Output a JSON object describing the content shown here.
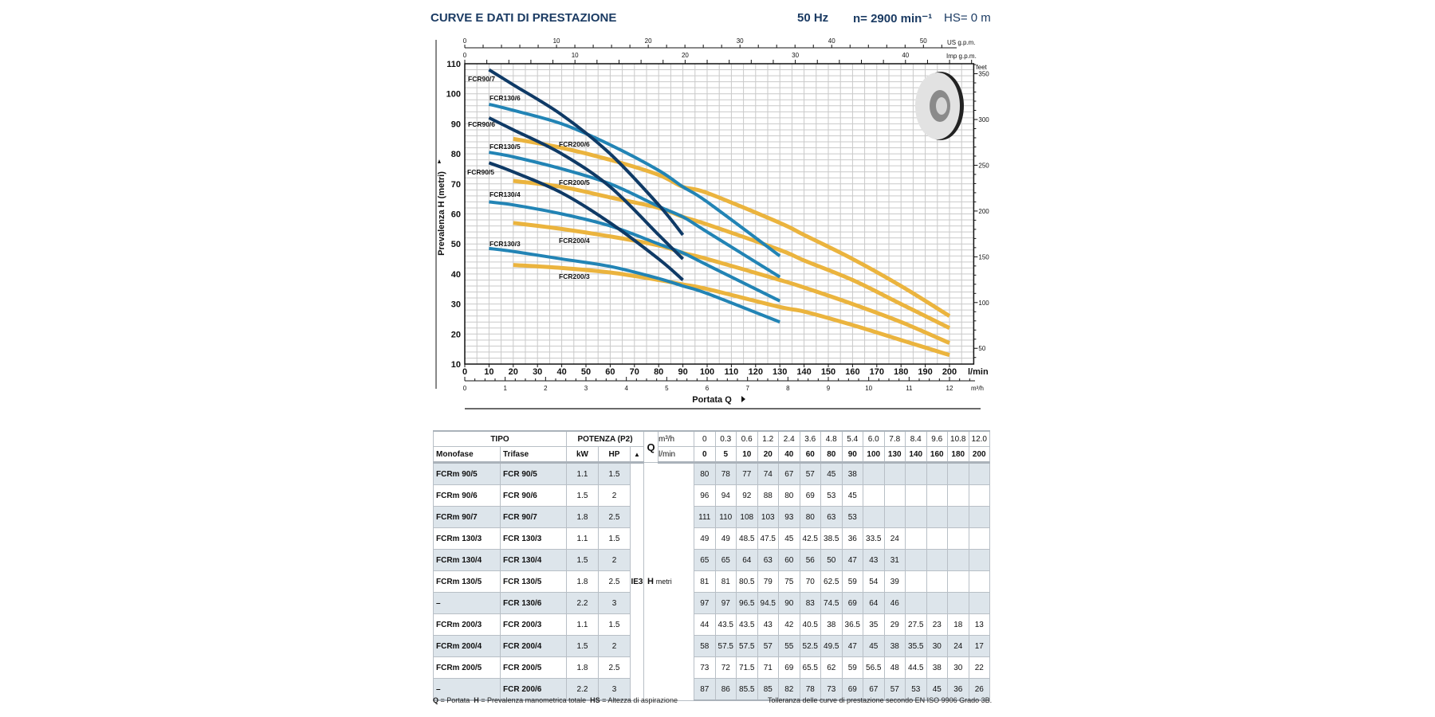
{
  "header": {
    "title": "CURVE E DATI DI PRESTAZIONE",
    "freq": "50 Hz",
    "speed": "n= 2900 min⁻¹",
    "hs": "HS= 0 m"
  },
  "colors": {
    "fcr90": "#0f3a66",
    "fcr130": "#2284b5",
    "fcr200": "#ebb43e",
    "title": "#1b3b63",
    "row_shade": "#dde5eb"
  },
  "chart_data": {
    "type": "line",
    "xlabel": "Portata Q",
    "ylabel": "Prevalenza H (metri)",
    "x_unit": "l/min",
    "xlim": [
      0,
      210
    ],
    "ylim": [
      10,
      110
    ],
    "grid": true,
    "x_ticks": [
      0,
      10,
      20,
      30,
      40,
      50,
      60,
      70,
      80,
      90,
      100,
      110,
      120,
      130,
      140,
      150,
      160,
      170,
      180,
      190,
      200
    ],
    "y_ticks": [
      10,
      20,
      30,
      40,
      50,
      60,
      70,
      80,
      90,
      100,
      110
    ],
    "secondary_axes": {
      "us_gpm": {
        "label": "US g.p.m.",
        "ticks": [
          0,
          10,
          20,
          30,
          40,
          50
        ]
      },
      "imp_gpm": {
        "label": "Imp g.p.m.",
        "ticks": [
          0,
          10,
          20,
          30,
          40
        ]
      },
      "m3h": {
        "label": "m³/h",
        "ticks": [
          0,
          1,
          2,
          3,
          4,
          5,
          6,
          7,
          8,
          9,
          10,
          11,
          12
        ]
      },
      "feet": {
        "label": "feet",
        "ticks": [
          50,
          100,
          150,
          200,
          250,
          300,
          350
        ]
      }
    },
    "series": [
      {
        "name": "FCR90/5",
        "group": "fcr90",
        "x": [
          10,
          20,
          40,
          60,
          80,
          90
        ],
        "y": [
          77,
          74,
          67,
          57,
          45,
          38
        ]
      },
      {
        "name": "FCR90/6",
        "group": "fcr90",
        "x": [
          10,
          20,
          40,
          60,
          80,
          90
        ],
        "y": [
          92,
          88,
          80,
          69,
          53,
          45
        ]
      },
      {
        "name": "FCR90/7",
        "group": "fcr90",
        "x": [
          10,
          20,
          40,
          60,
          80,
          90
        ],
        "y": [
          108,
          103,
          93,
          80,
          63,
          53
        ]
      },
      {
        "name": "FCR130/3",
        "group": "fcr130",
        "x": [
          10,
          20,
          40,
          60,
          80,
          90,
          100,
          130
        ],
        "y": [
          48.5,
          47.5,
          45,
          42.5,
          38.5,
          36,
          33.5,
          24
        ]
      },
      {
        "name": "FCR130/4",
        "group": "fcr130",
        "x": [
          10,
          20,
          40,
          60,
          80,
          90,
          100,
          130
        ],
        "y": [
          64,
          63,
          60,
          56,
          50,
          47,
          43,
          31
        ]
      },
      {
        "name": "FCR130/5",
        "group": "fcr130",
        "x": [
          10,
          20,
          40,
          60,
          80,
          90,
          100,
          130
        ],
        "y": [
          80.5,
          79,
          75,
          70,
          62.5,
          59,
          54,
          39
        ]
      },
      {
        "name": "FCR130/6",
        "group": "fcr130",
        "x": [
          10,
          20,
          40,
          60,
          80,
          90,
          100,
          130
        ],
        "y": [
          96.5,
          94.5,
          90,
          83,
          74.5,
          69,
          64,
          46
        ]
      },
      {
        "name": "FCR200/3",
        "group": "fcr200",
        "x": [
          20,
          40,
          60,
          80,
          90,
          100,
          130,
          140,
          160,
          180,
          200
        ],
        "y": [
          43,
          42,
          40.5,
          38,
          36.5,
          35,
          29,
          27.5,
          23,
          18,
          13
        ]
      },
      {
        "name": "FCR200/4",
        "group": "fcr200",
        "x": [
          20,
          40,
          60,
          80,
          90,
          100,
          130,
          140,
          160,
          180,
          200
        ],
        "y": [
          57,
          55,
          52.5,
          49.5,
          47,
          45,
          38,
          35.5,
          30,
          24,
          17
        ]
      },
      {
        "name": "FCR200/5",
        "group": "fcr200",
        "x": [
          20,
          40,
          60,
          80,
          90,
          100,
          130,
          140,
          160,
          180,
          200
        ],
        "y": [
          71,
          69,
          65.5,
          62,
          59,
          56.5,
          48,
          44.5,
          38,
          30,
          22
        ]
      },
      {
        "name": "FCR200/6",
        "group": "fcr200",
        "x": [
          20,
          40,
          60,
          80,
          90,
          100,
          130,
          140,
          160,
          180,
          200
        ],
        "y": [
          85,
          82,
          78,
          73,
          69,
          67,
          57,
          53,
          45,
          36,
          26
        ]
      }
    ]
  },
  "table": {
    "tipo": "TIPO",
    "potenza": "POTENZA (P2)",
    "q": "Q",
    "m3h_unit": "m³/h",
    "lmin_unit": "l/min",
    "monofase": "Monofase",
    "trifase": "Trifase",
    "kw": "kW",
    "hp": "HP",
    "efficiency_symbol": "▲",
    "ie": "IE3",
    "h": "H",
    "h_unit": "metri",
    "m3h": [
      "0",
      "0.3",
      "0.6",
      "1.2",
      "2.4",
      "3.6",
      "4.8",
      "5.4",
      "6.0",
      "7.8",
      "8.4",
      "9.6",
      "10.8",
      "12.0"
    ],
    "lmin": [
      "0",
      "5",
      "10",
      "20",
      "40",
      "60",
      "80",
      "90",
      "100",
      "130",
      "140",
      "160",
      "180",
      "200"
    ],
    "rows": [
      {
        "mono": "FCRm 90/5",
        "tri": "FCR 90/5",
        "kw": "1.1",
        "hp": "1.5",
        "values": [
          "80",
          "78",
          "77",
          "74",
          "67",
          "57",
          "45",
          "38",
          "",
          "",
          "",
          "",
          "",
          ""
        ]
      },
      {
        "mono": "FCRm 90/6",
        "tri": "FCR 90/6",
        "kw": "1.5",
        "hp": "2",
        "values": [
          "96",
          "94",
          "92",
          "88",
          "80",
          "69",
          "53",
          "45",
          "",
          "",
          "",
          "",
          "",
          ""
        ]
      },
      {
        "mono": "FCRm 90/7",
        "tri": "FCR 90/7",
        "kw": "1.8",
        "hp": "2.5",
        "values": [
          "111",
          "110",
          "108",
          "103",
          "93",
          "80",
          "63",
          "53",
          "",
          "",
          "",
          "",
          "",
          ""
        ]
      },
      {
        "mono": "FCRm 130/3",
        "tri": "FCR 130/3",
        "kw": "1.1",
        "hp": "1.5",
        "values": [
          "49",
          "49",
          "48.5",
          "47.5",
          "45",
          "42.5",
          "38.5",
          "36",
          "33.5",
          "24",
          "",
          "",
          "",
          ""
        ]
      },
      {
        "mono": "FCRm 130/4",
        "tri": "FCR 130/4",
        "kw": "1.5",
        "hp": "2",
        "values": [
          "65",
          "65",
          "64",
          "63",
          "60",
          "56",
          "50",
          "47",
          "43",
          "31",
          "",
          "",
          "",
          ""
        ]
      },
      {
        "mono": "FCRm 130/5",
        "tri": "FCR 130/5",
        "kw": "1.8",
        "hp": "2.5",
        "values": [
          "81",
          "81",
          "80.5",
          "79",
          "75",
          "70",
          "62.5",
          "59",
          "54",
          "39",
          "",
          "",
          "",
          ""
        ]
      },
      {
        "mono": "–",
        "tri": "FCR 130/6",
        "kw": "2.2",
        "hp": "3",
        "values": [
          "97",
          "97",
          "96.5",
          "94.5",
          "90",
          "83",
          "74.5",
          "69",
          "64",
          "46",
          "",
          "",
          "",
          ""
        ]
      },
      {
        "mono": "FCRm 200/3",
        "tri": "FCR 200/3",
        "kw": "1.1",
        "hp": "1.5",
        "values": [
          "44",
          "43.5",
          "43.5",
          "43",
          "42",
          "40.5",
          "38",
          "36.5",
          "35",
          "29",
          "27.5",
          "23",
          "18",
          "13"
        ]
      },
      {
        "mono": "FCRm 200/4",
        "tri": "FCR 200/4",
        "kw": "1.5",
        "hp": "2",
        "values": [
          "58",
          "57.5",
          "57.5",
          "57",
          "55",
          "52.5",
          "49.5",
          "47",
          "45",
          "38",
          "35.5",
          "30",
          "24",
          "17"
        ]
      },
      {
        "mono": "FCRm 200/5",
        "tri": "FCR 200/5",
        "kw": "1.8",
        "hp": "2.5",
        "values": [
          "73",
          "72",
          "71.5",
          "71",
          "69",
          "65.5",
          "62",
          "59",
          "56.5",
          "48",
          "44.5",
          "38",
          "30",
          "22"
        ]
      },
      {
        "mono": "–",
        "tri": "FCR 200/6",
        "kw": "2.2",
        "hp": "3",
        "values": [
          "87",
          "86",
          "85.5",
          "85",
          "82",
          "78",
          "73",
          "69",
          "67",
          "57",
          "53",
          "45",
          "36",
          "26"
        ]
      }
    ]
  },
  "footer": {
    "legend": [
      {
        "key": "Q",
        "text": " = Portata  "
      },
      {
        "key": "H",
        "text": " = Prevalenza manometrica totale  "
      },
      {
        "key": "HS",
        "text": " = Altezza di aspirazione"
      }
    ],
    "tolerance": "Tolleranza delle curve di prestazione secondo EN ISO 9906 Grado 3B."
  }
}
